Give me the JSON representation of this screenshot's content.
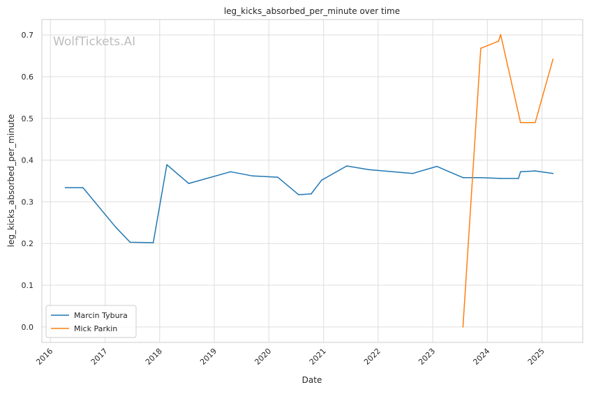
{
  "chart_data": {
    "type": "line",
    "title": "leg_kicks_absorbed_per_minute over time",
    "xlabel": "Date",
    "ylabel": "leg_kicks_absorbed_per_minute",
    "watermark": "WolfTickets.AI",
    "x_ticks": [
      "2016",
      "2017",
      "2018",
      "2019",
      "2020",
      "2021",
      "2022",
      "2023",
      "2024",
      "2025"
    ],
    "xlim": [
      "2015-11-05",
      "2025-09-30"
    ],
    "y_ticks": [
      "0.0",
      "0.1",
      "0.2",
      "0.3",
      "0.4",
      "0.5",
      "0.6",
      "0.7"
    ],
    "ylim": [
      -0.037,
      0.737
    ],
    "grid": true,
    "legend_position": "lower-left",
    "series": [
      {
        "name": "Marcin Tybura",
        "color": "#1f77b4",
        "points": [
          [
            "2016-04-10",
            0.334
          ],
          [
            "2016-08-06",
            0.334
          ],
          [
            "2017-03-11",
            0.24
          ],
          [
            "2017-06-17",
            0.203
          ],
          [
            "2017-11-19",
            0.202
          ],
          [
            "2018-02-18",
            0.389
          ],
          [
            "2018-07-14",
            0.344
          ],
          [
            "2019-04-20",
            0.372
          ],
          [
            "2019-09-14",
            0.362
          ],
          [
            "2020-02-29",
            0.359
          ],
          [
            "2020-07-18",
            0.317
          ],
          [
            "2020-10-10",
            0.319
          ],
          [
            "2020-12-19",
            0.352
          ],
          [
            "2021-06-05",
            0.386
          ],
          [
            "2021-10-30",
            0.377
          ],
          [
            "2022-08-20",
            0.368
          ],
          [
            "2023-01-28",
            0.385
          ],
          [
            "2023-07-22",
            0.358
          ],
          [
            "2023-11-18",
            0.358
          ],
          [
            "2024-03-30",
            0.356
          ],
          [
            "2024-07-27",
            0.356
          ],
          [
            "2024-08-10",
            0.372
          ],
          [
            "2024-11-16",
            0.374
          ],
          [
            "2025-03-15",
            0.368
          ]
        ]
      },
      {
        "name": "Mick Parkin",
        "color": "#ff7f0e",
        "points": [
          [
            "2023-07-22",
            0.0
          ],
          [
            "2023-11-18",
            0.668
          ],
          [
            "2024-03-16",
            0.685
          ],
          [
            "2024-03-30",
            0.701
          ],
          [
            "2024-08-10",
            0.49
          ],
          [
            "2024-11-16",
            0.49
          ],
          [
            "2025-03-15",
            0.642
          ]
        ]
      }
    ]
  }
}
